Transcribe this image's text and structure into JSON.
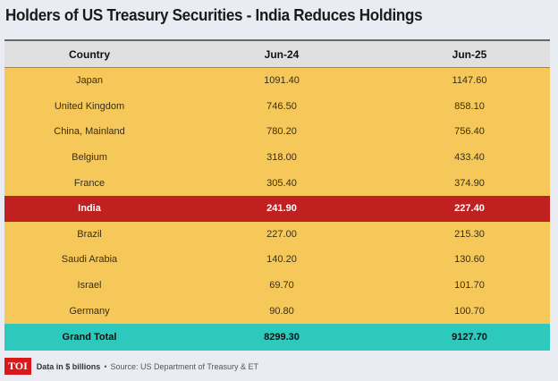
{
  "title": "Holders of US Treasury Securities - India Reduces Holdings",
  "table": {
    "headers": [
      "Country",
      "Jun-24",
      "Jun-25"
    ],
    "rows": [
      {
        "country": "Japan",
        "jun24": "1091.40",
        "jun25": "1147.60"
      },
      {
        "country": "United Kingdom",
        "jun24": "746.50",
        "jun25": "858.10"
      },
      {
        "country": "China, Mainland",
        "jun24": "780.20",
        "jun25": "756.40"
      },
      {
        "country": "Belgium",
        "jun24": "318.00",
        "jun25": "433.40"
      },
      {
        "country": "France",
        "jun24": "305.40",
        "jun25": "374.90"
      },
      {
        "country": "India",
        "jun24": "241.90",
        "jun25": "227.40",
        "highlight": true
      },
      {
        "country": "Brazil",
        "jun24": "227.00",
        "jun25": "215.30"
      },
      {
        "country": "Saudi Arabia",
        "jun24": "140.20",
        "jun25": "130.60"
      },
      {
        "country": "Israel",
        "jun24": "69.70",
        "jun25": "101.70"
      },
      {
        "country": "Germany",
        "jun24": "90.80",
        "jun25": "100.70"
      }
    ],
    "total": {
      "country": "Grand Total",
      "jun24": "8299.30",
      "jun25": "9127.70"
    }
  },
  "footer": {
    "logo": "TOI",
    "note": "Data in $ billions",
    "separator": "•",
    "source": "Source: US Department of Treasury & ET"
  },
  "colors": {
    "row": "#f6c85a",
    "highlight": "#c0201f",
    "total": "#2ec9bd",
    "header": "#e0e0e0"
  }
}
